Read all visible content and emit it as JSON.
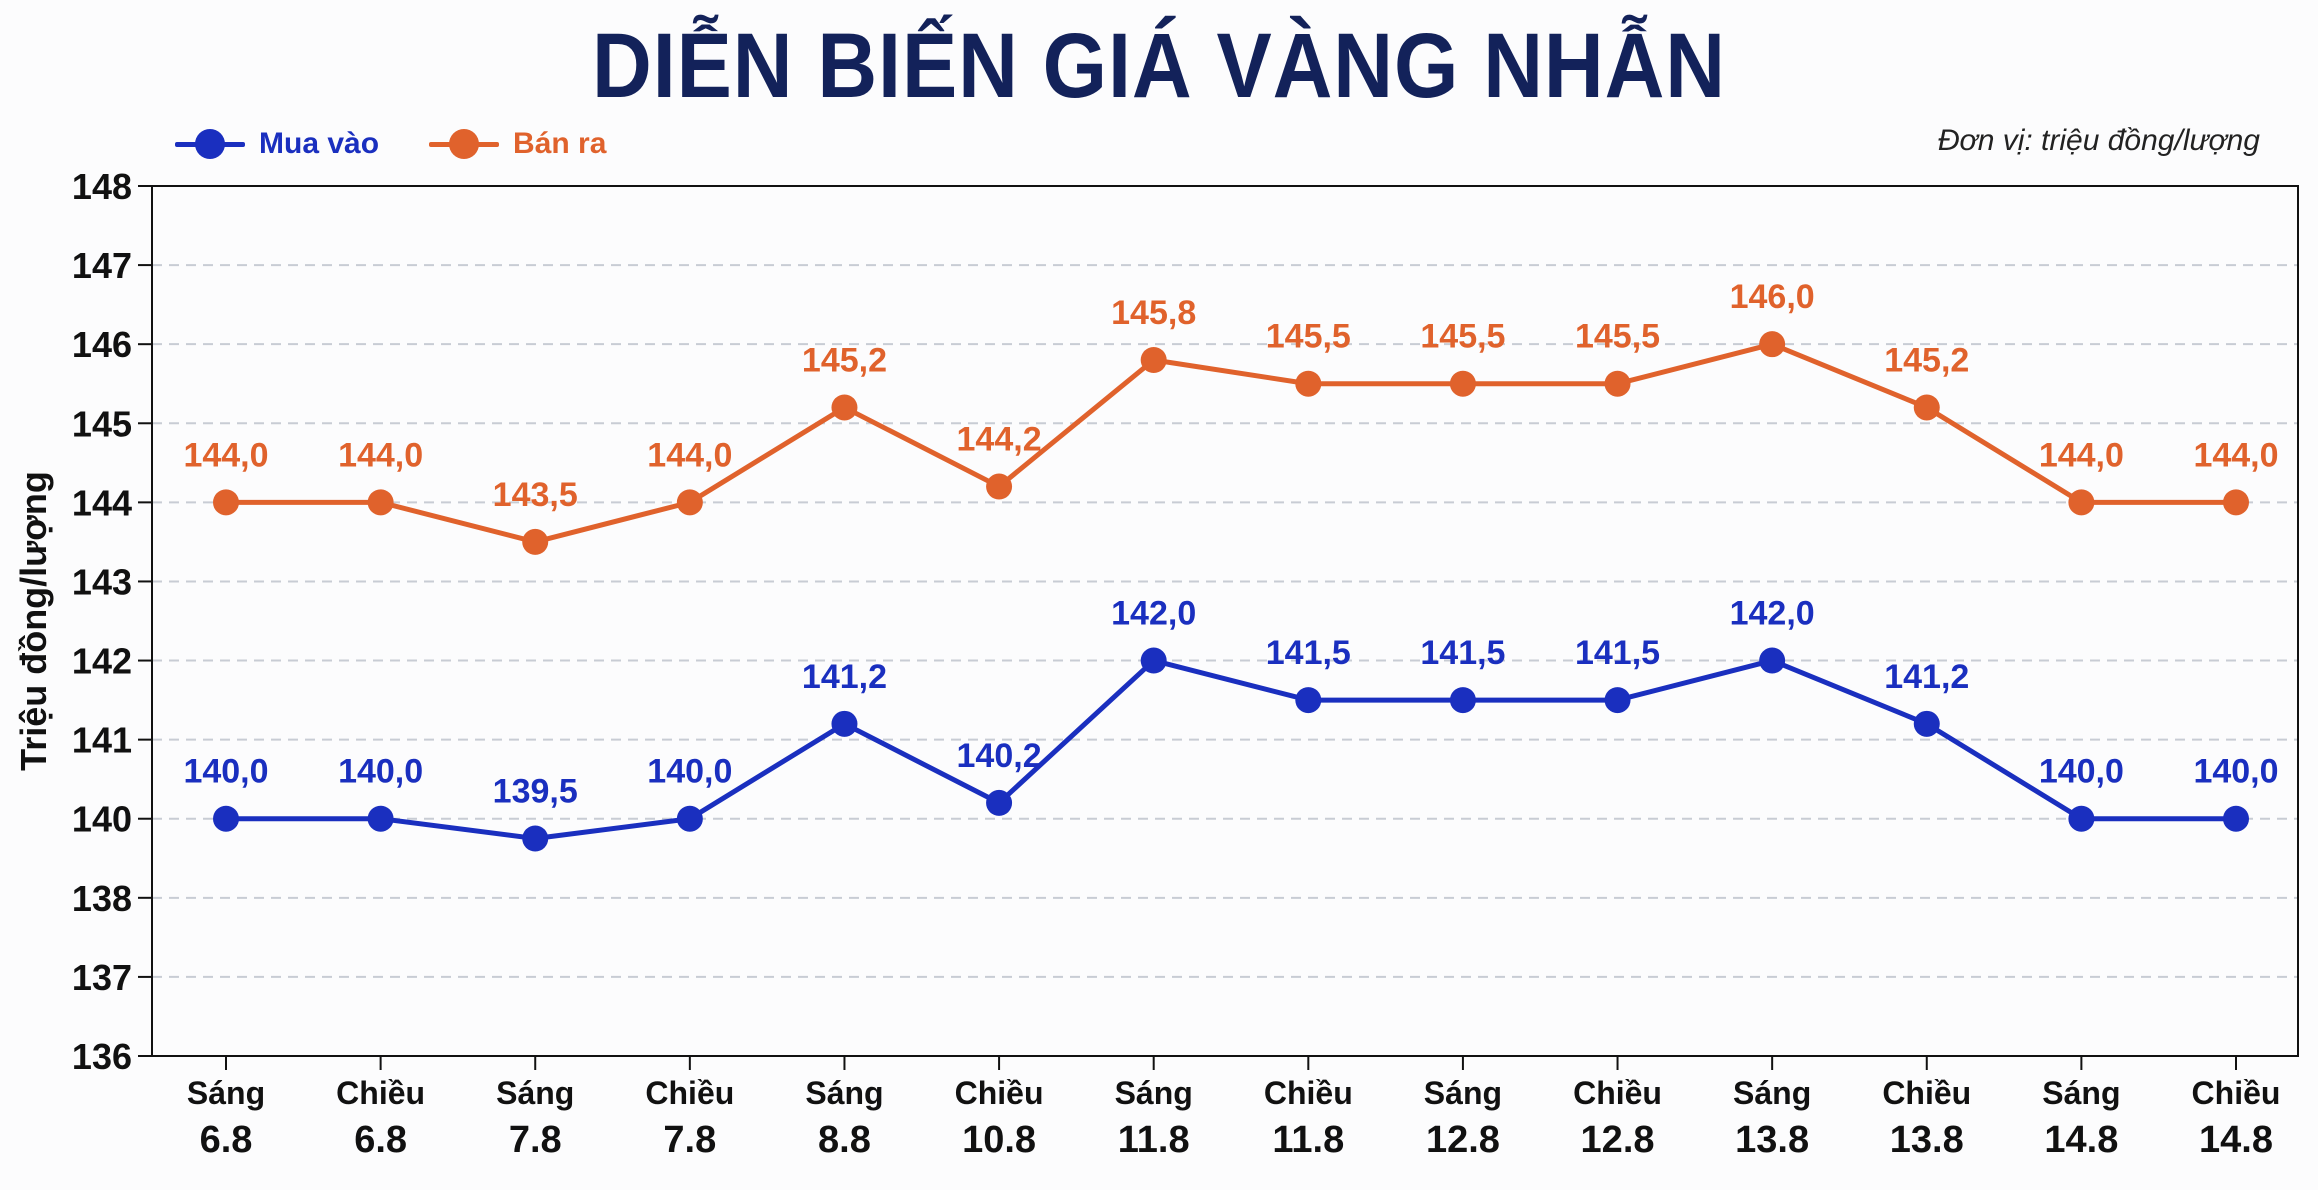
{
  "title": "DIỄN BIẾN GIÁ VÀNG NHẪN",
  "unit_note": "Đơn vị: triệu đồng/lượng",
  "colors": {
    "buy": "#1a2fbf",
    "sell": "#e0622c",
    "title": "#13225a",
    "grid": "#c8ccd4"
  },
  "chart_data": {
    "type": "line",
    "title": "DIỄN BIẾN GIÁ VÀNG NHẪN",
    "ylabel": "Triệu đồng/lượng",
    "xlabel": "",
    "y_ticks": [
      "148",
      "147",
      "146",
      "145",
      "144",
      "143",
      "142",
      "141",
      "140",
      "138",
      "137",
      "136"
    ],
    "categories": [
      {
        "session": "Sáng",
        "date": "6.8"
      },
      {
        "session": "Chiều",
        "date": "6.8"
      },
      {
        "session": "Sáng",
        "date": "7.8"
      },
      {
        "session": "Chiều",
        "date": "7.8"
      },
      {
        "session": "Sáng",
        "date": "8.8"
      },
      {
        "session": "Chiều",
        "date": "10.8"
      },
      {
        "session": "Sáng",
        "date": "11.8"
      },
      {
        "session": "Chiều",
        "date": "11.8"
      },
      {
        "session": "Sáng",
        "date": "12.8"
      },
      {
        "session": "Chiều",
        "date": "12.8"
      },
      {
        "session": "Sáng",
        "date": "13.8"
      },
      {
        "session": "Chiều",
        "date": "13.8"
      },
      {
        "session": "Sáng",
        "date": "14.8"
      },
      {
        "session": "Chiều",
        "date": "14.8"
      }
    ],
    "series": [
      {
        "name": "Mua vào",
        "color": "#1a2fbf",
        "values": [
          140.0,
          140.0,
          139.5,
          140.0,
          141.2,
          140.2,
          142.0,
          141.5,
          141.5,
          141.5,
          142.0,
          141.2,
          140.0,
          140.0
        ],
        "labels": [
          "140,0",
          "140,0",
          "139,5",
          "140,0",
          "141,2",
          "140,2",
          "142,0",
          "141,5",
          "141,5",
          "141,5",
          "142,0",
          "141,2",
          "140,0",
          "140,0"
        ]
      },
      {
        "name": "Bán ra",
        "color": "#e0622c",
        "values": [
          144.0,
          144.0,
          143.5,
          144.0,
          145.2,
          144.2,
          145.8,
          145.5,
          145.5,
          145.5,
          146.0,
          145.2,
          144.0,
          144.0
        ],
        "labels": [
          "144,0",
          "144,0",
          "143,5",
          "144,0",
          "145,2",
          "144,2",
          "145,8",
          "145,5",
          "145,5",
          "145,5",
          "146,0",
          "145,2",
          "144,0",
          "144,0"
        ]
      }
    ],
    "grid": true,
    "legend": "top-left"
  }
}
